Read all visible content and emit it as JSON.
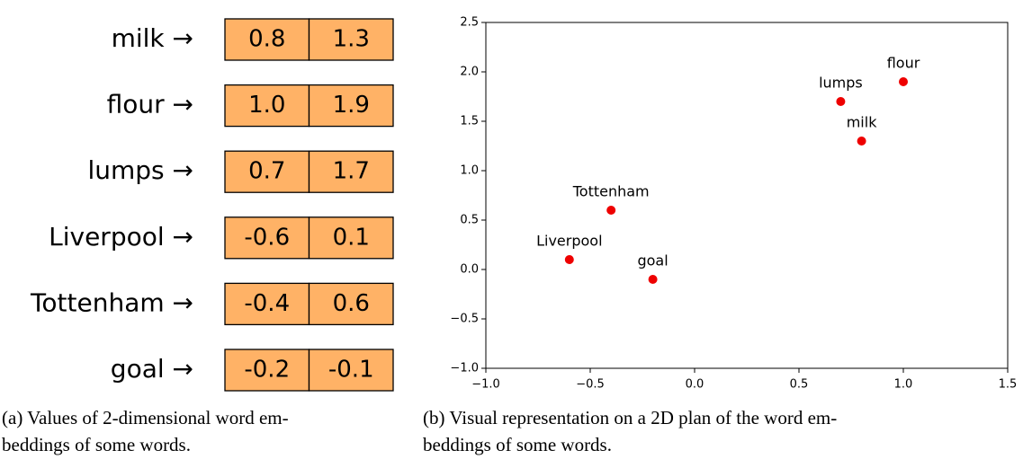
{
  "embeddings": {
    "rows": [
      {
        "word": "milk →",
        "values": [
          "0.8",
          "1.3"
        ]
      },
      {
        "word": "flour →",
        "values": [
          "1.0",
          "1.9"
        ]
      },
      {
        "word": "lumps →",
        "values": [
          "0.7",
          "1.7"
        ]
      },
      {
        "word": "Liverpool →",
        "values": [
          "-0.6",
          "0.1"
        ]
      },
      {
        "word": "Tottenham →",
        "values": [
          "-0.4",
          "0.6"
        ]
      },
      {
        "word": "goal →",
        "values": [
          "-0.2",
          "-0.1"
        ]
      }
    ],
    "caption": [
      "(a) Values of 2-dimensional word em-",
      "beddings of some words."
    ]
  },
  "chart_data": {
    "type": "scatter",
    "x": [
      0.8,
      1.0,
      0.7,
      -0.6,
      -0.4,
      -0.2
    ],
    "values": [
      1.3,
      1.9,
      1.7,
      0.1,
      0.6,
      -0.1
    ],
    "labels": [
      "milk",
      "flour",
      "lumps",
      "Liverpool",
      "Tottenham",
      "goal"
    ],
    "color": "#ee0000",
    "xlim": [
      -1.0,
      1.5
    ],
    "ylim": [
      -1.0,
      2.5
    ],
    "xticks": [
      {
        "value": -1.0,
        "label": "−1.0"
      },
      {
        "value": -0.5,
        "label": "−0.5"
      },
      {
        "value": 0,
        "label": "0.0"
      },
      {
        "value": 0.5,
        "label": "0.5"
      },
      {
        "value": 1.0,
        "label": "1.0"
      },
      {
        "value": 1.5,
        "label": "1.5"
      }
    ],
    "yticks": [
      {
        "value": -1.0,
        "label": "−1.0"
      },
      {
        "value": -0.5,
        "label": "−0.5"
      },
      {
        "value": 0,
        "label": "0.0"
      },
      {
        "value": 0.5,
        "label": "0.5"
      },
      {
        "value": 1.0,
        "label": "1.0"
      },
      {
        "value": 1.5,
        "label": "1.5"
      },
      {
        "value": 2.0,
        "label": "2.0"
      },
      {
        "value": 2.5,
        "label": "2.5"
      }
    ],
    "caption": [
      "(b) Visual representation on a 2D plan of the word em-",
      "beddings of some words."
    ]
  }
}
